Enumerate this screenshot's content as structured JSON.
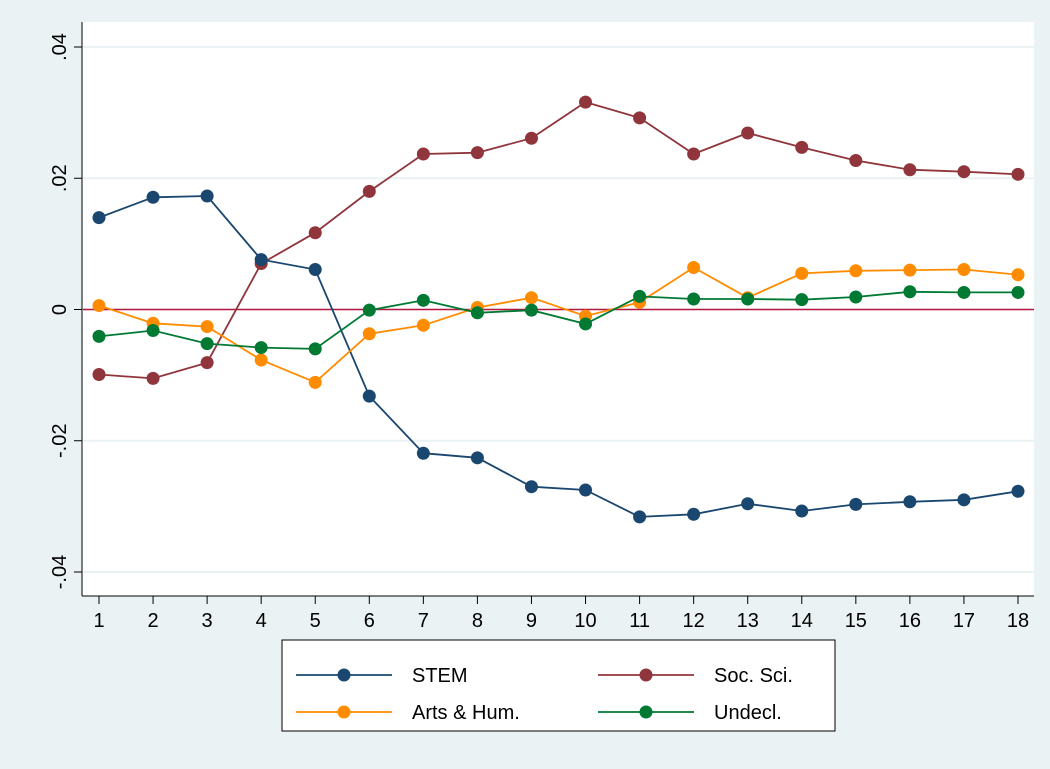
{
  "chart_data": {
    "type": "line",
    "title": "",
    "xlabel": "",
    "ylabel": "",
    "x": [
      1,
      2,
      3,
      4,
      5,
      6,
      7,
      8,
      9,
      10,
      11,
      12,
      13,
      14,
      15,
      16,
      17,
      18
    ],
    "x_tick_labels": [
      "1",
      "2",
      "3",
      "4",
      "5",
      "6",
      "7",
      "8",
      "9",
      "10",
      "11",
      "12",
      "13",
      "14",
      "15",
      "16",
      "17",
      "18"
    ],
    "ylim": [
      -0.04,
      0.04
    ],
    "y_ticks": [
      -0.04,
      -0.02,
      0,
      0.02,
      0.04
    ],
    "y_tick_labels": [
      "-.04",
      "-.02",
      "0",
      ".02",
      ".04"
    ],
    "grid": true,
    "reference_line": {
      "y": 0,
      "color": "#b5163f"
    },
    "legend": {
      "placement": "bottom",
      "columns": 2
    },
    "series": [
      {
        "name": "STEM",
        "color": "#1a476f",
        "values": [
          0.014,
          0.0171,
          0.0173,
          0.0076,
          0.0061,
          -0.0132,
          -0.0219,
          -0.0226,
          -0.027,
          -0.0275,
          -0.0316,
          -0.0312,
          -0.0296,
          -0.0307,
          -0.0297,
          -0.0293,
          -0.029,
          -0.0277
        ]
      },
      {
        "name": "Soc. Sci.",
        "color": "#90353b",
        "values": [
          -0.0099,
          -0.0105,
          -0.0081,
          0.007,
          0.0117,
          0.018,
          0.0237,
          0.0239,
          0.0261,
          0.0316,
          0.0292,
          0.0237,
          0.0269,
          0.0247,
          0.0227,
          0.0213,
          0.021,
          0.0206
        ]
      },
      {
        "name": "Arts & Hum.",
        "color": "#ff8c00",
        "values": [
          0.0006,
          -0.0021,
          -0.0026,
          -0.0077,
          -0.0111,
          -0.0037,
          -0.0024,
          0.0003,
          0.0018,
          -0.001,
          0.0011,
          0.0064,
          0.0018,
          0.0055,
          0.0059,
          0.006,
          0.0061,
          0.0053
        ]
      },
      {
        "name": "Undecl.",
        "color": "#007a33",
        "values": [
          -0.0041,
          -0.0032,
          -0.0052,
          -0.0058,
          -0.006,
          -0.0001,
          0.0014,
          -0.0005,
          -0.0001,
          -0.0022,
          0.002,
          0.0016,
          0.0016,
          0.0015,
          0.0019,
          0.0027,
          0.0026,
          0.0026
        ]
      }
    ]
  }
}
